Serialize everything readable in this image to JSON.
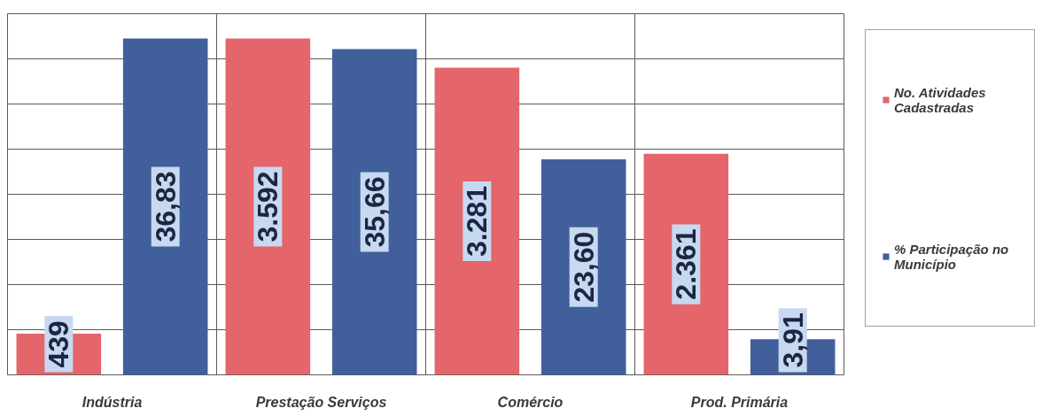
{
  "chart_data": {
    "type": "bar",
    "categories": [
      "Indústria",
      "Prestação Serviços",
      "Comércio",
      "Prod. Primária"
    ],
    "series": [
      {
        "name": "No. Atividades Cadastradas",
        "color": "#e4656a",
        "axis": "y2",
        "values": [
          439,
          3592,
          3281,
          2361
        ],
        "value_labels": [
          "439",
          "3.592",
          "3.281",
          "2.361"
        ]
      },
      {
        "name": "% Participação no Município",
        "color": "#415f9b",
        "values": [
          36.83,
          35.66,
          23.6,
          3.91
        ],
        "value_labels": [
          "36,83",
          "35,66",
          "23,60",
          "3,91"
        ]
      }
    ],
    "grid": true,
    "legend": "right"
  }
}
